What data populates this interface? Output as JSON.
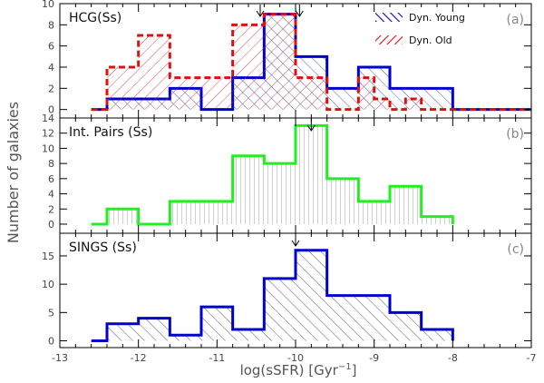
{
  "figure": {
    "ylabel": "Number of galaxies",
    "xlabel_main": "log(sSFR) [Gyr",
    "xlabel_sup": "−1",
    "xlabel_end": "]"
  },
  "chart_data": [
    {
      "type": "histogram",
      "panel_title": "HCG(Ss)",
      "panel_tag": "(a)",
      "xlim": [
        -13,
        -7
      ],
      "ylim": [
        -0.8,
        10
      ],
      "yticks": [
        0,
        2,
        4,
        6,
        8,
        10
      ],
      "legend_position": "top-right",
      "arrows_x": [
        -10.45,
        -9.95
      ],
      "series": [
        {
          "name": "Dyn. Young",
          "color": "#0000cc",
          "style": "solid",
          "bin_edges": [
            -12.6,
            -12.4,
            -11.6,
            -11.2,
            -10.8,
            -10.4,
            -10.0,
            -9.6,
            -9.2,
            -8.8,
            -8.0,
            -7.0
          ],
          "counts": [
            0,
            1,
            2,
            0,
            3,
            9,
            5,
            2,
            4,
            2,
            0
          ]
        },
        {
          "name": "Dyn. Old",
          "color": "#dd1111",
          "style": "dashed",
          "bin_edges": [
            -12.6,
            -12.4,
            -12.0,
            -11.6,
            -10.8,
            -10.4,
            -10.0,
            -9.6,
            -9.2,
            -9.0,
            -8.8,
            -8.6,
            -8.4,
            -8.0,
            -7.0
          ],
          "counts": [
            0,
            4,
            7,
            3,
            8,
            9,
            3,
            0,
            3,
            1,
            0,
            1,
            0,
            0
          ]
        }
      ]
    },
    {
      "type": "histogram",
      "panel_title": "Int. Pairs (Ss)",
      "panel_tag": "(b)",
      "xlim": [
        -13,
        -7
      ],
      "ylim": [
        -1.2,
        14
      ],
      "yticks": [
        0,
        2,
        4,
        6,
        8,
        10,
        12,
        14
      ],
      "arrows_x": [
        -9.8
      ],
      "series": [
        {
          "color": "#22ee22",
          "style": "solid",
          "bin_edges": [
            -12.6,
            -12.4,
            -12.0,
            -11.6,
            -10.8,
            -10.4,
            -10.0,
            -9.6,
            -9.2,
            -8.8,
            -8.4,
            -8.0
          ],
          "counts": [
            0,
            2,
            0,
            3,
            9,
            8,
            13,
            6,
            3,
            5,
            1
          ]
        }
      ]
    },
    {
      "type": "histogram",
      "panel_title": "SINGS (Ss)",
      "panel_tag": "(c)",
      "xlim": [
        -13,
        -7
      ],
      "ylim": [
        -1.2,
        19
      ],
      "yticks": [
        0,
        5,
        10,
        15
      ],
      "xticks": [
        -13,
        -12,
        -11,
        -10,
        -9,
        -8,
        -7
      ],
      "arrows_x": [
        -10.0
      ],
      "series": [
        {
          "color": "#0000cc",
          "style": "solid",
          "bin_edges": [
            -12.6,
            -12.4,
            -12.0,
            -11.6,
            -11.2,
            -10.8,
            -10.4,
            -10.0,
            -9.6,
            -8.8,
            -8.4,
            -8.0
          ],
          "counts": [
            0,
            3,
            4,
            1,
            6,
            2,
            11,
            16,
            8,
            5,
            2
          ]
        }
      ]
    }
  ]
}
